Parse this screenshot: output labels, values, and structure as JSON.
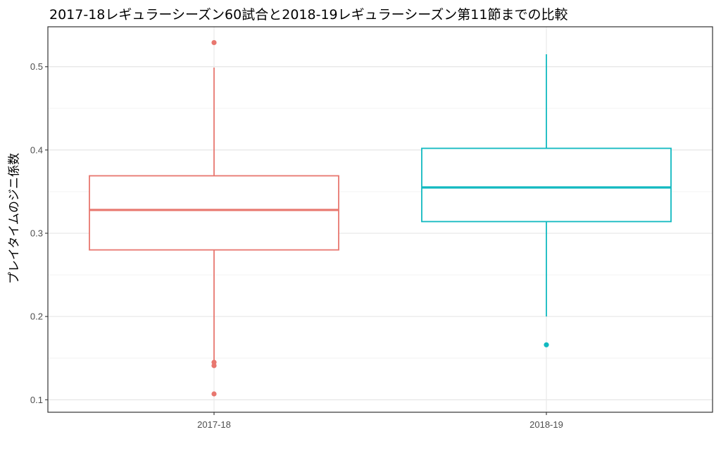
{
  "chart_data": {
    "type": "boxplot",
    "title": "2017-18レギュラーシーズン60試合と2018-19レギュラーシーズン第11節までの比較",
    "xlabel": "",
    "ylabel": "プレイタイムのジニ係数",
    "categories": [
      "2017-18",
      "2018-19"
    ],
    "yticks": [
      "0.1",
      "0.2",
      "0.3",
      "0.4",
      "0.5"
    ],
    "ylim": [
      0.085,
      0.548
    ],
    "grid": true,
    "legend": "none",
    "boxes": [
      {
        "category": "2017-18",
        "color": "#e8776f",
        "whisker_low": 0.145,
        "q1": 0.28,
        "median": 0.328,
        "q3": 0.369,
        "whisker_high": 0.499,
        "outliers": [
          0.529,
          0.145,
          0.141,
          0.107
        ]
      },
      {
        "category": "2018-19",
        "color": "#11b9c0",
        "whisker_low": 0.2,
        "q1": 0.314,
        "median": 0.355,
        "q3": 0.402,
        "whisker_high": 0.515,
        "outliers": [
          0.166
        ]
      }
    ]
  }
}
